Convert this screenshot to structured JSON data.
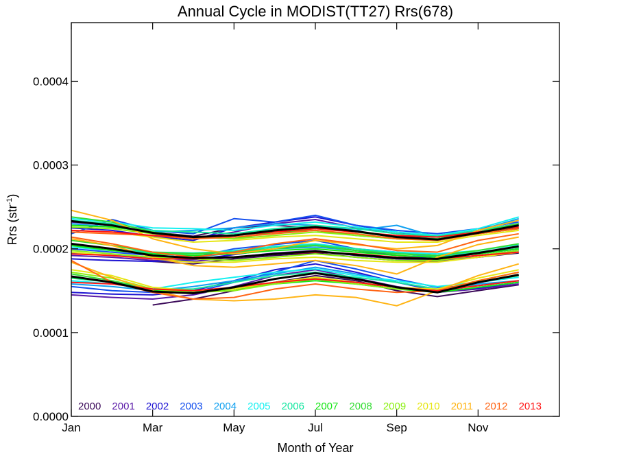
{
  "chart_data": {
    "type": "line",
    "title": "Annual Cycle in MODIST(TT27) Rrs(678)",
    "xlabel": "Month of Year",
    "ylabel_main": "Rrs (str",
    "ylabel_sup": "-1",
    "ylabel_close": ")",
    "xlim": [
      0,
      12
    ],
    "ylim": [
      0,
      0.00047
    ],
    "x_ticks": [
      {
        "value": 0,
        "label": "Jan"
      },
      {
        "value": 2,
        "label": "Mar"
      },
      {
        "value": 4,
        "label": "May"
      },
      {
        "value": 6,
        "label": "Jul"
      },
      {
        "value": 8,
        "label": "Sep"
      },
      {
        "value": 10,
        "label": "Nov"
      }
    ],
    "y_ticks": [
      {
        "value": 0,
        "label": "0.0000"
      },
      {
        "value": 0.0001,
        "label": "0.0001"
      },
      {
        "value": 0.0002,
        "label": "0.0002"
      },
      {
        "value": 0.0003,
        "label": "0.0003"
      },
      {
        "value": 0.0004,
        "label": "0.0004"
      }
    ],
    "x": [
      0,
      1,
      2,
      3,
      4,
      5,
      6,
      7,
      8,
      9,
      10,
      11
    ],
    "legend_position": "bottom",
    "series": [
      {
        "name": "2000",
        "color": "#3c0b5a",
        "groups": [
          [
            null,
            null,
            0.00022,
            0.000215,
            0.000225,
            0.000228,
            0.000225,
            0.00022,
            0.000215,
            0.000212,
            0.000218,
            0.000225
          ],
          [
            null,
            null,
            0.000185,
            0.000182,
            0.000188,
            0.000192,
            0.000195,
            0.00019,
            0.000186,
            0.000185,
            0.00019,
            0.000195
          ],
          [
            null,
            null,
            0.000133,
            0.00014,
            0.00015,
            0.00016,
            0.000168,
            0.000162,
            0.00015,
            0.000143,
            0.00015,
            0.000157
          ]
        ]
      },
      {
        "name": "2001",
        "color": "#5a1aa8",
        "groups": [
          [
            0.000232,
            0.000228,
            0.000218,
            0.000212,
            0.00022,
            0.00023,
            0.000235,
            0.000225,
            0.000218,
            0.000215,
            0.000222,
            0.00023
          ],
          [
            0.000192,
            0.00019,
            0.000186,
            0.000185,
            0.00019,
            0.000195,
            0.000198,
            0.000192,
            0.000188,
            0.000186,
            0.00019,
            0.000196
          ],
          [
            0.000145,
            0.000142,
            0.00014,
            0.000145,
            0.000155,
            0.000168,
            0.000175,
            0.000165,
            0.000155,
            0.000148,
            0.000152,
            0.000158
          ]
        ]
      },
      {
        "name": "2002",
        "color": "#1e14d2",
        "groups": [
          [
            0.000225,
            0.000222,
            0.000215,
            0.00021,
            0.000225,
            0.000232,
            0.000238,
            0.000228,
            0.00022,
            0.000214,
            0.00022,
            0.000228
          ],
          [
            0.000188,
            0.000186,
            0.000185,
            0.000187,
            0.000193,
            0.0002,
            0.000205,
            0.000198,
            0.000192,
            0.000188,
            0.000192,
            0.000198
          ],
          [
            0.000148,
            0.000146,
            0.000145,
            0.00015,
            0.000162,
            0.000175,
            0.000182,
            0.000172,
            0.00016,
            0.00015,
            0.000153,
            0.00016
          ]
        ]
      },
      {
        "name": "2003",
        "color": "#1550ee",
        "groups": [
          [
            0.000218,
            0.000235,
            0.000222,
            0.000218,
            0.000236,
            0.000232,
            0.00024,
            0.000228,
            0.000222,
            0.000218,
            0.000224,
            0.000232
          ],
          [
            0.0002,
            0.000196,
            0.000192,
            0.00019,
            0.0002,
            0.000205,
            0.00021,
            0.0002,
            0.000196,
            0.000192,
            0.000194,
            0.0002
          ],
          [
            0.000155,
            0.00015,
            0.000148,
            0.000148,
            0.00016,
            0.000172,
            0.000186,
            0.000176,
            0.000164,
            0.000154,
            0.000156,
            0.000162
          ]
        ]
      },
      {
        "name": "2004",
        "color": "#0fa0f0",
        "groups": [
          [
            0.00023,
            0.000226,
            0.00022,
            0.000222,
            0.000225,
            0.00023,
            0.000228,
            0.000222,
            0.000228,
            0.000214,
            0.000222,
            0.000236
          ],
          [
            0.000195,
            0.000192,
            0.00019,
            0.00019,
            0.000195,
            0.0002,
            0.000202,
            0.000198,
            0.000195,
            0.00019,
            0.000195,
            0.0002
          ],
          [
            0.000158,
            0.000155,
            0.00015,
            0.000155,
            0.000162,
            0.00017,
            0.000178,
            0.00017,
            0.00016,
            0.000152,
            0.000158,
            0.000162
          ]
        ]
      },
      {
        "name": "2005",
        "color": "#14f0f0",
        "groups": [
          [
            0.000236,
            0.000232,
            0.000225,
            0.000224,
            0.000222,
            0.000228,
            0.000232,
            0.000226,
            0.00022,
            0.000216,
            0.000224,
            0.000238
          ],
          [
            0.000202,
            0.000198,
            0.000195,
            0.000194,
            0.000198,
            0.000203,
            0.000206,
            0.0002,
            0.000196,
            0.000194,
            0.000198,
            0.000205
          ],
          [
            0.000162,
            0.000158,
            0.000152,
            0.00016,
            0.000166,
            0.000172,
            0.000176,
            0.000168,
            0.000162,
            0.000155,
            0.00016,
            0.000166
          ]
        ]
      },
      {
        "name": "2006",
        "color": "#14e6a0",
        "groups": [
          [
            0.000234,
            0.00023,
            0.000222,
            0.00022,
            0.000218,
            0.000224,
            0.000228,
            0.000224,
            0.000218,
            0.000215,
            0.000222,
            0.00023
          ],
          [
            0.000205,
            0.0002,
            0.000196,
            0.000195,
            0.000197,
            0.000202,
            0.000205,
            0.0002,
            0.000195,
            0.000192,
            0.000196,
            0.000202
          ],
          [
            0.000165,
            0.00016,
            0.000152,
            0.000152,
            0.00016,
            0.000168,
            0.000172,
            0.000166,
            0.00016,
            0.000152,
            0.000156,
            0.000162
          ]
        ]
      },
      {
        "name": "2007",
        "color": "#14e614",
        "groups": [
          [
            0.000228,
            0.000226,
            0.00022,
            0.000214,
            0.000212,
            0.00022,
            0.000222,
            0.000216,
            0.000212,
            0.000212,
            0.000218,
            0.000224
          ],
          [
            0.000204,
            0.000198,
            0.000194,
            0.000192,
            0.000194,
            0.000198,
            0.0002,
            0.000196,
            0.000192,
            0.00019,
            0.000194,
            0.0002
          ],
          [
            0.000166,
            0.00016,
            0.00015,
            0.000148,
            0.000152,
            0.000158,
            0.000162,
            0.000158,
            0.000152,
            0.000148,
            0.000154,
            0.00016
          ]
        ]
      },
      {
        "name": "2008",
        "color": "#32dc32",
        "groups": [
          [
            0.000238,
            0.000232,
            0.00022,
            0.000214,
            0.000216,
            0.000222,
            0.000226,
            0.00022,
            0.000214,
            0.000212,
            0.00022,
            0.00023
          ],
          [
            0.00021,
            0.000204,
            0.000196,
            0.000194,
            0.000196,
            0.0002,
            0.000204,
            0.000198,
            0.000194,
            0.000192,
            0.000198,
            0.000206
          ],
          [
            0.00017,
            0.000162,
            0.000152,
            0.00015,
            0.000152,
            0.00016,
            0.000165,
            0.00016,
            0.000154,
            0.00015,
            0.00016,
            0.000168
          ]
        ]
      },
      {
        "name": "2009",
        "color": "#8cf014",
        "groups": [
          [
            0.000226,
            0.000224,
            0.000218,
            0.000214,
            0.000212,
            0.000216,
            0.00022,
            0.000216,
            0.000212,
            0.00021,
            0.000218,
            0.000224
          ],
          [
            0.000198,
            0.000194,
            0.00019,
            0.000188,
            0.000186,
            0.00019,
            0.000194,
            0.00019,
            0.000186,
            0.000186,
            0.000192,
            0.000198
          ],
          [
            0.000172,
            0.000165,
            0.000152,
            0.000148,
            0.00015,
            0.000158,
            0.000164,
            0.000158,
            0.000152,
            0.00015,
            0.000162,
            0.000172
          ]
        ]
      },
      {
        "name": "2010",
        "color": "#e6e614",
        "groups": [
          [
            0.000222,
            0.00022,
            0.000214,
            0.000208,
            0.00021,
            0.000214,
            0.000216,
            0.000212,
            0.000208,
            0.000208,
            0.000216,
            0.000222
          ],
          [
            0.000196,
            0.000192,
            0.000188,
            0.000184,
            0.000184,
            0.000188,
            0.00019,
            0.000186,
            0.000184,
            0.000184,
            0.00019,
            0.000196
          ],
          [
            0.000175,
            0.000168,
            0.000154,
            0.00015,
            0.000152,
            0.00016,
            0.000166,
            0.00016,
            0.000154,
            0.000152,
            0.000165,
            0.000175
          ]
        ]
      },
      {
        "name": "2011",
        "color": "#ffb414",
        "groups": [
          [
            0.000246,
            0.000234,
            0.000212,
            0.0002,
            0.000194,
            0.0002,
            0.00021,
            0.000205,
            0.0002,
            0.000204,
            0.000222,
            0.000234
          ],
          [
            0.000212,
            0.000204,
            0.00019,
            0.00018,
            0.000178,
            0.000182,
            0.000186,
            0.00018,
            0.00017,
            0.00019,
            0.000205,
            0.000214
          ],
          [
            0.000184,
            0.000166,
            0.00015,
            0.00014,
            0.000138,
            0.00014,
            0.000145,
            0.000142,
            0.000132,
            0.00015,
            0.000168,
            0.000182
          ]
        ]
      },
      {
        "name": "2012",
        "color": "#ff6414",
        "groups": [
          [
            0.00022,
            0.000218,
            0.000216,
            0.000212,
            0.000214,
            0.000218,
            0.000222,
            0.000218,
            0.000212,
            0.00021,
            0.000218,
            0.000224
          ],
          [
            0.000214,
            0.000206,
            0.000196,
            0.00019,
            0.000196,
            0.000206,
            0.000212,
            0.000206,
            0.000198,
            0.000196,
            0.00021,
            0.000218
          ],
          [
            0.000186,
            0.00016,
            0.000148,
            0.00014,
            0.000142,
            0.000152,
            0.000158,
            0.000152,
            0.000148,
            0.00015,
            0.000162,
            0.000172
          ]
        ]
      },
      {
        "name": "2013",
        "color": "#ff1414",
        "groups": [
          [
            0.000222,
            0.00022,
            0.000216,
            0.000214,
            0.000216,
            0.00022,
            0.000224,
            0.00022,
            0.000216,
            0.000214,
            0.00022,
            0.000226
          ],
          [
            0.000194,
            0.000192,
            0.000188,
            0.000188,
            0.00019,
            0.000194,
            0.000196,
            0.000194,
            0.00019,
            0.000188,
            0.000192,
            0.000196
          ],
          [
            0.00016,
            0.000158,
            0.000152,
            0.00015,
            0.000154,
            0.00016,
            0.000164,
            0.00016,
            0.000154,
            0.00015,
            0.000156,
            0.000162
          ]
        ]
      }
    ],
    "mean_lines": {
      "color": "#000000",
      "groups": [
        [
          0.000233,
          0.000228,
          0.000219,
          0.000214,
          0.000216,
          0.000222,
          0.000226,
          0.000221,
          0.000214,
          0.000211,
          0.000219,
          0.000228
        ],
        [
          0.000206,
          0.0002,
          0.000192,
          0.000189,
          0.00019,
          0.000194,
          0.000197,
          0.000193,
          0.000189,
          0.000188,
          0.000195,
          0.000203
        ],
        [
          0.000167,
          0.00016,
          0.000149,
          0.000147,
          0.000154,
          0.000164,
          0.000171,
          0.000164,
          0.000154,
          0.000148,
          0.00016,
          0.000169
        ]
      ]
    }
  }
}
